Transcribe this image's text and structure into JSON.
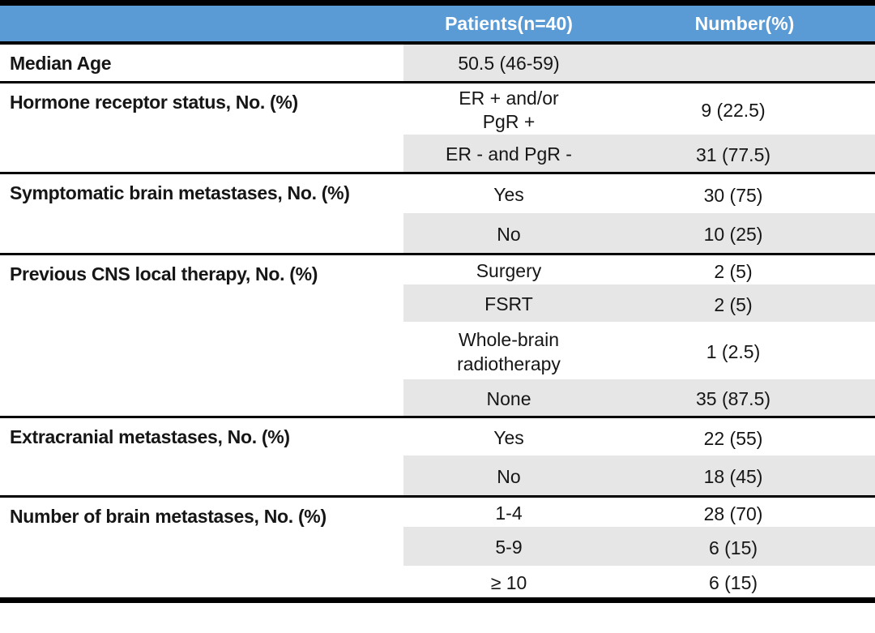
{
  "title": "Patient characteristics table",
  "colors": {
    "header_bg": "#5B9BD5",
    "header_text": "#FFFFFF",
    "row_shade": "#E7E6E6",
    "rule": "#000000",
    "body_text": "#161616"
  },
  "header": {
    "col1": "",
    "patients": "Patients(n=40)",
    "number": "Number(%)"
  },
  "sections": [
    {
      "label": "Median Age",
      "rows": [
        {
          "value": "50.5 (46-59)",
          "number": ""
        }
      ]
    },
    {
      "label": "Hormone receptor status, No. (%)",
      "rows": [
        {
          "value": "ER + and/or\nPgR +",
          "number": "9 (22.5)"
        },
        {
          "value": "ER - and PgR -",
          "number": "31 (77.5)"
        }
      ]
    },
    {
      "label": "Symptomatic brain metastases, No. (%)",
      "rows": [
        {
          "value": "Yes",
          "number": "30 (75)"
        },
        {
          "value": "No",
          "number": "10 (25)"
        }
      ]
    },
    {
      "label": "Previous CNS local therapy, No. (%)",
      "rows": [
        {
          "value": "Surgery",
          "number": "2 (5)"
        },
        {
          "value": "FSRT",
          "number": "2 (5)"
        },
        {
          "value": "Whole-brain\nradiotherapy",
          "number": "1 (2.5)"
        },
        {
          "value": "None",
          "number": "35 (87.5)"
        }
      ]
    },
    {
      "label": "Extracranial metastases, No. (%)",
      "rows": [
        {
          "value": "Yes",
          "number": "22 (55)"
        },
        {
          "value": "No",
          "number": "18 (45)"
        }
      ]
    },
    {
      "label": "Number of brain metastases, No. (%)",
      "rows": [
        {
          "value": "1-4",
          "number": "28 (70)"
        },
        {
          "value": "5-9",
          "number": "6 (15)"
        },
        {
          "value": "≥ 10",
          "number": "6 (15)"
        }
      ]
    }
  ]
}
